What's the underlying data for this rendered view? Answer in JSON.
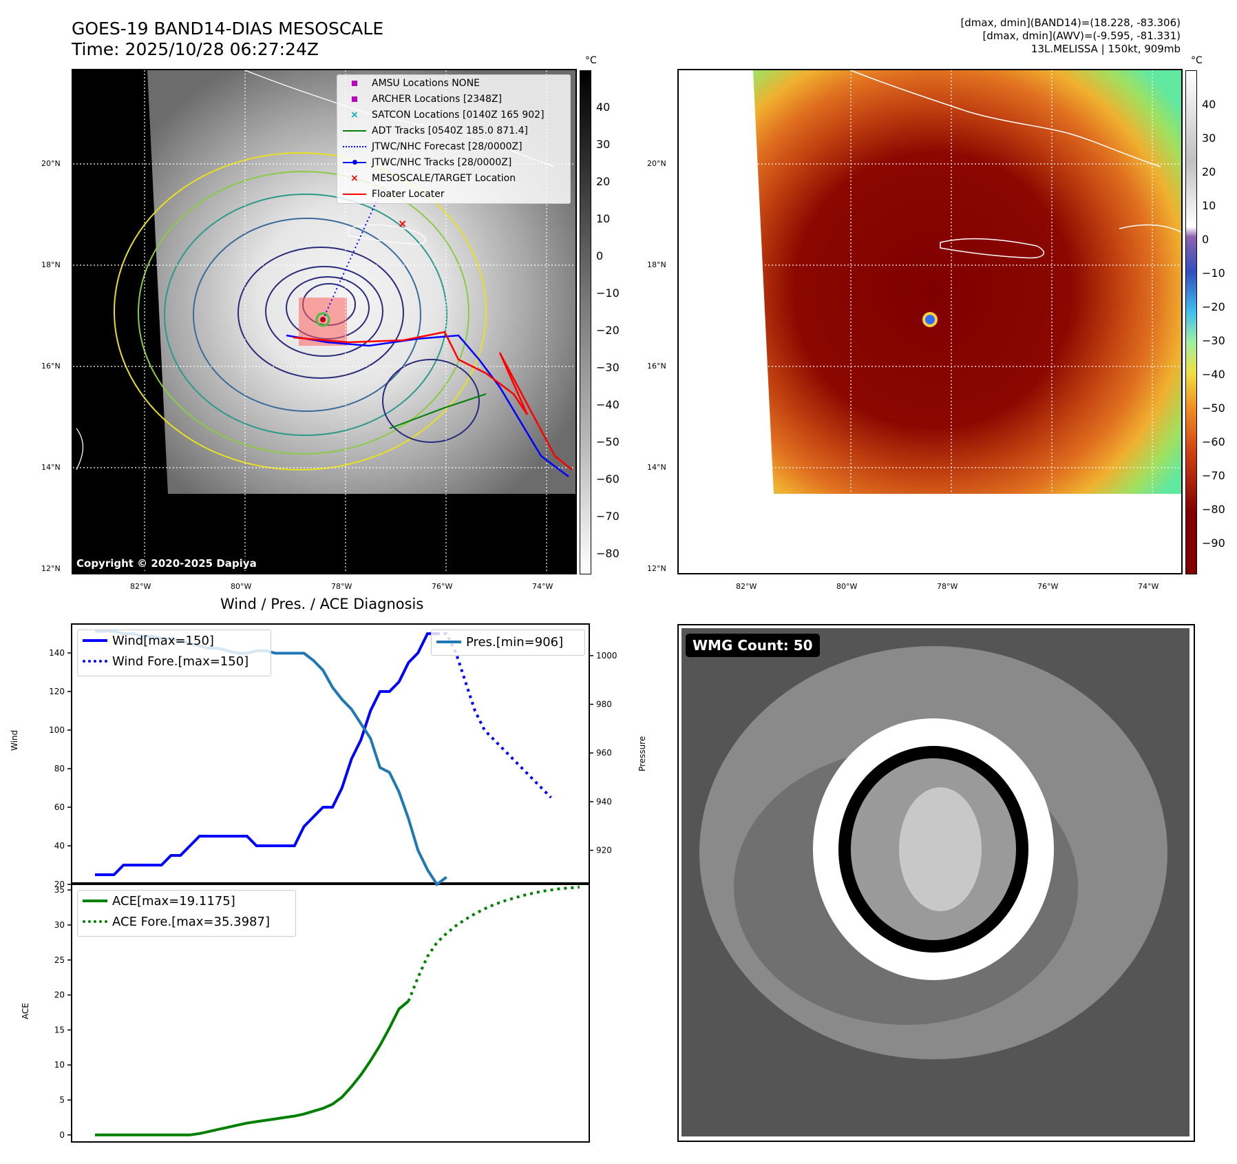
{
  "header": {
    "title_line1": "GOES-19 BAND14-DIAS MESOSCALE",
    "title_line2": "Time: 2025/10/28 06:27:24Z",
    "info_line1": "[dmax, dmin](BAND14)=(18.228, -83.306)",
    "info_line2": "[dmax, dmin](AWV)=(-9.595, -81.331)",
    "info_line3": "13L.MELISSA | 150kt, 909mb"
  },
  "map": {
    "lat_labels": [
      "20°N",
      "18°N",
      "16°N",
      "14°N",
      "12°N"
    ],
    "lon_labels": [
      "82°W",
      "80°W",
      "78°W",
      "76°W",
      "74°W"
    ],
    "copyright": "Copyright © 2020-2025 Dapiya"
  },
  "colorbar_left": {
    "unit": "°C",
    "ticks": [
      "40",
      "30",
      "20",
      "10",
      "0",
      "−10",
      "−20",
      "−30",
      "−40",
      "−50",
      "−60",
      "−70",
      "−80"
    ]
  },
  "colorbar_right": {
    "unit": "°C",
    "ticks": [
      "40",
      "30",
      "20",
      "10",
      "0",
      "−10",
      "−20",
      "−30",
      "−40",
      "−50",
      "−60",
      "−70",
      "−80",
      "−90"
    ]
  },
  "map_legend": {
    "items": [
      {
        "label": "AMSU Locations NONE",
        "symbol": "square",
        "color": "#c000c0"
      },
      {
        "label": "ARCHER Locations [2348Z]",
        "symbol": "square",
        "color": "#c000c0"
      },
      {
        "label": "SATCON Locations [0140Z 165 902]",
        "symbol": "x",
        "color": "#00b0b0"
      },
      {
        "label": "ADT Tracks [0540Z 185.0 871.4]",
        "symbol": "line",
        "color": "#008000"
      },
      {
        "label": "JTWC/NHC Forecast [28/0000Z]",
        "symbol": "dotline",
        "color": "#0000ff"
      },
      {
        "label": "JTWC/NHC Tracks [28/0000Z]",
        "symbol": "dotmarker",
        "color": "#0000ff"
      },
      {
        "label": "MESOSCALE/TARGET Location",
        "symbol": "x",
        "color": "#ff0000"
      },
      {
        "label": "Floater Locater",
        "symbol": "line",
        "color": "#ff0000"
      }
    ]
  },
  "wmg": {
    "label": "WMG Count: 50"
  },
  "chart_data": [
    {
      "type": "line",
      "title": "Wind / Pres. / ACE Diagnosis",
      "ylabel": "Wind",
      "y2label": "Pressure",
      "ylim": [
        20,
        155
      ],
      "y2lim": [
        906,
        1013
      ],
      "yticks": [
        "140",
        "120",
        "100",
        "80",
        "60",
        "40",
        "20"
      ],
      "y2ticks": [
        "1000",
        "980",
        "960",
        "940",
        "920"
      ],
      "series": [
        {
          "name": "Wind[max=150]",
          "style": "solid",
          "color": "#0000ff",
          "axis": "left",
          "values": [
            25,
            25,
            25,
            30,
            30,
            30,
            30,
            30,
            35,
            35,
            40,
            45,
            45,
            45,
            45,
            45,
            45,
            40,
            40,
            40,
            40,
            40,
            50,
            55,
            60,
            60,
            70,
            85,
            95,
            110,
            120,
            120,
            125,
            135,
            140,
            150,
            150
          ]
        },
        {
          "name": "Wind Fore.[max=150]",
          "style": "dotted",
          "color": "#0000ff",
          "axis": "left",
          "values": [
            150,
            150,
            140,
            125,
            110,
            100,
            95,
            90,
            85,
            80,
            75,
            70,
            65
          ]
        },
        {
          "name": "Pres.[min=906]",
          "style": "solid",
          "color": "#1f77b4",
          "axis": "right",
          "values": [
            1010,
            1010,
            1010,
            1009,
            1009,
            1008,
            1008,
            1007,
            1007,
            1006,
            1005,
            1004,
            1003,
            1003,
            1002,
            1001,
            1001,
            1002,
            1002,
            1001,
            1001,
            1001,
            1001,
            998,
            994,
            987,
            982,
            978,
            972,
            966,
            954,
            952,
            944,
            933,
            920,
            912,
            906,
            909
          ]
        }
      ]
    },
    {
      "type": "line",
      "ylabel": "ACE",
      "ylim": [
        -1,
        36
      ],
      "yticks": [
        "35",
        "30",
        "25",
        "20",
        "15",
        "10",
        "5",
        "0"
      ],
      "series": [
        {
          "name": "ACE[max=19.1175]",
          "style": "solid",
          "color": "#008000",
          "values": [
            0,
            0,
            0,
            0,
            0,
            0,
            0,
            0,
            0,
            0,
            0,
            0.2,
            0.5,
            0.8,
            1.1,
            1.4,
            1.7,
            1.9,
            2.1,
            2.3,
            2.5,
            2.7,
            3.0,
            3.4,
            3.8,
            4.4,
            5.4,
            6.9,
            8.6,
            10.6,
            12.8,
            15.3,
            18.0,
            19.1175
          ]
        },
        {
          "name": "ACE Fore.[max=35.3987]",
          "style": "dotted",
          "color": "#008000",
          "values": [
            19.1175,
            22.5,
            25.5,
            27.5,
            28.8,
            29.9,
            30.8,
            31.6,
            32.3,
            32.9,
            33.4,
            33.8,
            34.2,
            34.5,
            34.8,
            35.0,
            35.2,
            35.3,
            35.3987
          ]
        }
      ]
    }
  ]
}
